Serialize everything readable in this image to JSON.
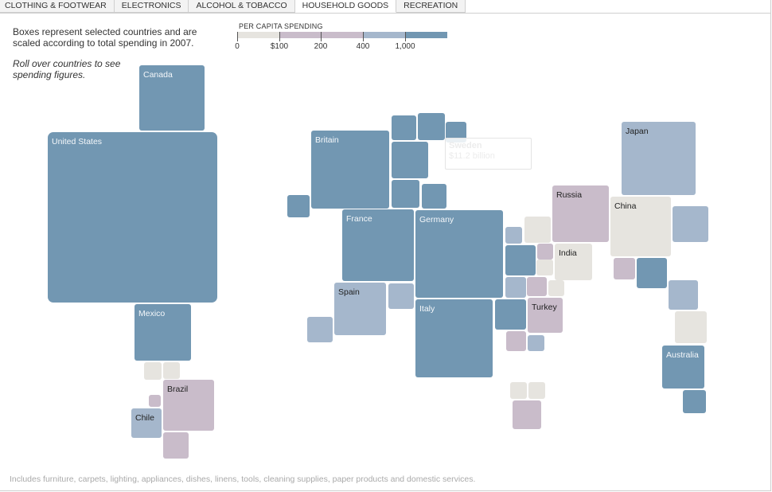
{
  "tabs": [
    {
      "label": "CLOTHING & FOOTWEAR",
      "active": false
    },
    {
      "label": "ELECTRONICS",
      "active": false
    },
    {
      "label": "ALCOHOL & TOBACCO",
      "active": false
    },
    {
      "label": "HOUSEHOLD GOODS",
      "active": true
    },
    {
      "label": "RECREATION",
      "active": false
    }
  ],
  "intro": "Boxes represent selected countries and are scaled according to total spending in 2007.",
  "hint": "Roll over countries to see spending figures.",
  "legend": {
    "title": "PER CAPITA SPENDING",
    "labels": [
      "0",
      "$100",
      "200",
      "400",
      "1,000"
    ],
    "colors": [
      "#e6e4df",
      "#c9bcca",
      "#a5b7cc",
      "#7297b2"
    ]
  },
  "tooltip": {
    "name": "Sweden",
    "value": "$11.2 billion"
  },
  "footnote": "Includes furniture, carpets, lighting, appliances, dishes, linens, tools, cleaning supplies, paper products and domestic services.",
  "countries": [
    {
      "name": "Canada",
      "tier": 3
    },
    {
      "name": "United States",
      "tier": 3
    },
    {
      "name": "Mexico",
      "tier": 3
    },
    {
      "name": "Brazil",
      "tier": 1
    },
    {
      "name": "Chile",
      "tier": 2
    },
    {
      "name": "Britain",
      "tier": 3
    },
    {
      "name": "France",
      "tier": 3
    },
    {
      "name": "Germany",
      "tier": 3
    },
    {
      "name": "Spain",
      "tier": 2
    },
    {
      "name": "Italy",
      "tier": 3
    },
    {
      "name": "Russia",
      "tier": 1
    },
    {
      "name": "Turkey",
      "tier": 1
    },
    {
      "name": "India",
      "tier": 0
    },
    {
      "name": "China",
      "tier": 0
    },
    {
      "name": "Japan",
      "tier": 2
    },
    {
      "name": "Australia",
      "tier": 3
    }
  ],
  "unlabeled_tiers": [
    3,
    3,
    3,
    3,
    3,
    3,
    2,
    0,
    0,
    1,
    1,
    2,
    2,
    0,
    0,
    3,
    1,
    2,
    2,
    1,
    0,
    0,
    3,
    2,
    3,
    2,
    1,
    0,
    0,
    1,
    3
  ]
}
